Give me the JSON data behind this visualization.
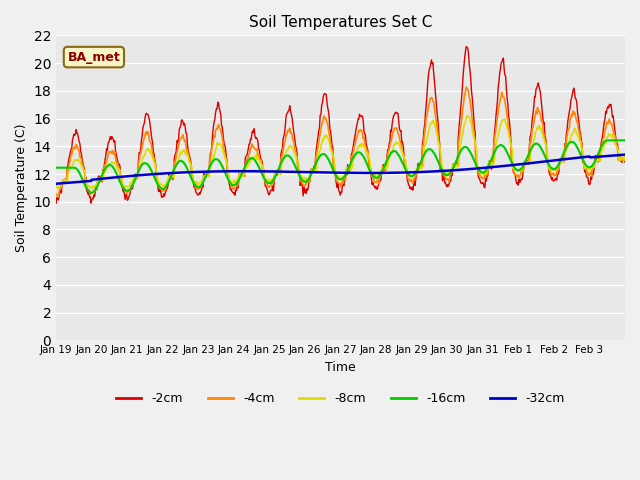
{
  "title": "Soil Temperatures Set C",
  "xlabel": "Time",
  "ylabel": "Soil Temperature (C)",
  "ylim": [
    0,
    22
  ],
  "yticks": [
    0,
    2,
    4,
    6,
    8,
    10,
    12,
    14,
    16,
    18,
    20,
    22
  ],
  "x_labels": [
    "Jan 19",
    "Jan 20",
    "Jan 21",
    "Jan 22",
    "Jan 23",
    "Jan 24",
    "Jan 25",
    "Jan 26",
    "Jan 27",
    "Jan 28",
    "Jan 29",
    "Jan 30",
    "Jan 31",
    "Feb 1",
    "Feb 2",
    "Feb 3",
    ""
  ],
  "n_days": 16,
  "colors": {
    "-2cm": "#dd0000",
    "-4cm": "#ff8800",
    "-8cm": "#dddd00",
    "-16cm": "#00cc00",
    "-32cm": "#0000cc"
  },
  "legend_label_box": "BA_met",
  "fig_bg_color": "#f0f0f0",
  "plot_bg_color": "#e8e8e8",
  "grid_color": "#ffffff"
}
